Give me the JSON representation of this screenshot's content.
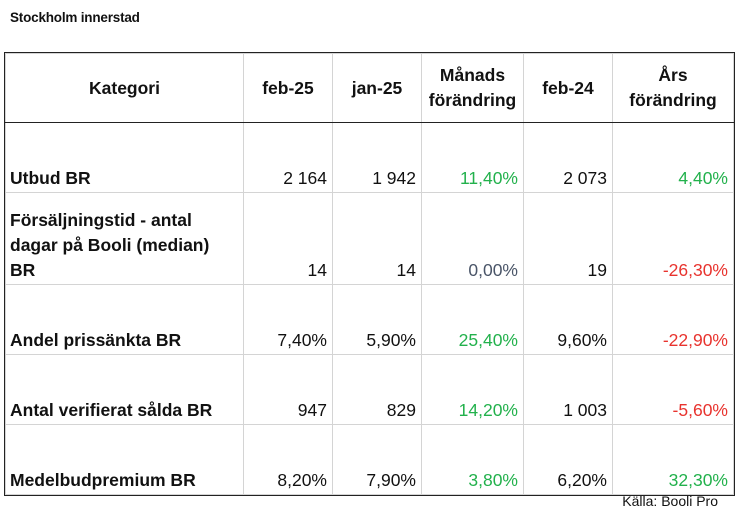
{
  "title": "Stockholm innerstad",
  "headers": [
    "Kategori",
    "feb-25",
    "jan-25",
    "Månads förändring",
    "feb-24",
    "Års förändring"
  ],
  "header_lines": {
    "monthly": [
      "Månads",
      "förändring"
    ],
    "yearly": [
      "Års",
      "förändring"
    ]
  },
  "rows": [
    {
      "label": "Utbud BR",
      "feb25": "2 164",
      "jan25": "1 942",
      "monthly": "11,40%",
      "feb24": "2 073",
      "yearly": "4,40%"
    },
    {
      "label_lines": [
        "Försäljningstid - antal",
        "dagar på Booli (median)",
        "BR"
      ],
      "feb25": "14",
      "jan25": "14",
      "monthly": "0,00%",
      "feb24": "19",
      "yearly": "-26,30%"
    },
    {
      "label": "Andel prissänkta BR",
      "feb25": "7,40%",
      "jan25": "5,90%",
      "monthly": "25,40%",
      "feb24": "9,60%",
      "yearly": "-22,90%"
    },
    {
      "label": "Antal verifierat sålda BR",
      "feb25": "947",
      "jan25": "829",
      "monthly": "14,20%",
      "feb24": "1 003",
      "yearly": "-5,60%"
    },
    {
      "label": "Medelbudpremium BR",
      "feb25": "8,20%",
      "jan25": "7,90%",
      "monthly": "3,80%",
      "feb24": "6,20%",
      "yearly": "32,30%"
    }
  ],
  "source": "Källa: Booli Pro",
  "colors": {
    "positive": "#22b14c",
    "negative": "#e8332e",
    "neutral": "#4a5568"
  }
}
